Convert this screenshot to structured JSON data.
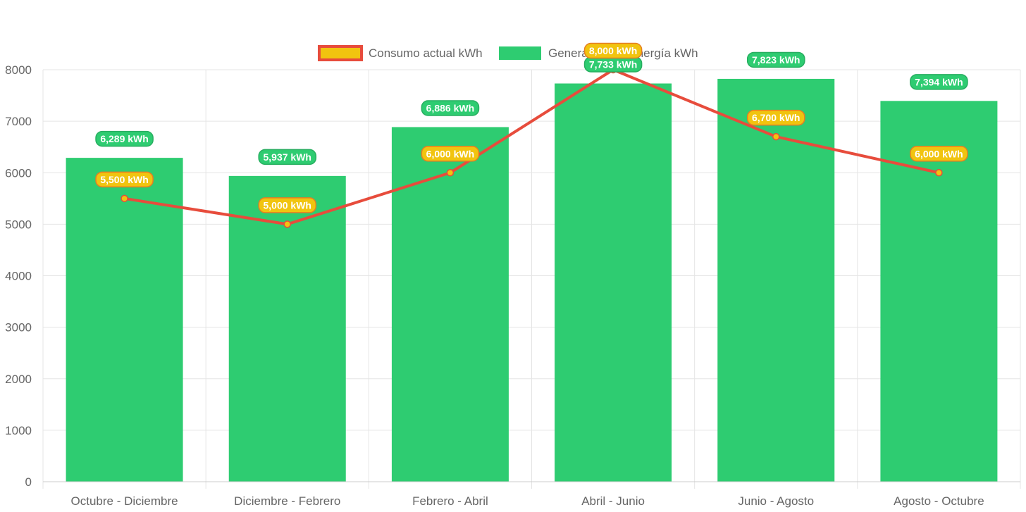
{
  "chart_data": {
    "type": "bar",
    "categories": [
      "Octubre - Diciembre",
      "Diciembre - Febrero",
      "Febrero - Abril",
      "Abril - Junio",
      "Junio - Agosto",
      "Agosto - Octubre"
    ],
    "series": [
      {
        "name": "Consumo actual kWh",
        "type": "line",
        "values": [
          5500,
          5000,
          6000,
          8000,
          6700,
          6000
        ],
        "labels": [
          "5,500 kWh",
          "5,000 kWh",
          "6,000 kWh",
          "8,000 kWh",
          "6,700 kWh",
          "6,000 kWh"
        ],
        "color": "#e74c3c",
        "fill_color": "#f1c40f"
      },
      {
        "name": "Generación de energía kWh",
        "type": "bar",
        "values": [
          6289,
          5937,
          6886,
          7733,
          7823,
          7394
        ],
        "labels": [
          "6,289 kWh",
          "5,937 kWh",
          "6,886 kWh",
          "7,733 kWh",
          "7,823 kWh",
          "7,394 kWh"
        ],
        "color": "#2ecc71"
      }
    ],
    "yticks": [
      "0",
      "1000",
      "2000",
      "3000",
      "4000",
      "5000",
      "6000",
      "7000",
      "8000"
    ],
    "ylim": [
      0,
      8000
    ],
    "grid": true,
    "legend_position": "top-center",
    "colors": {
      "grid": "#e5e5e5",
      "axis_text": "#666666"
    }
  }
}
